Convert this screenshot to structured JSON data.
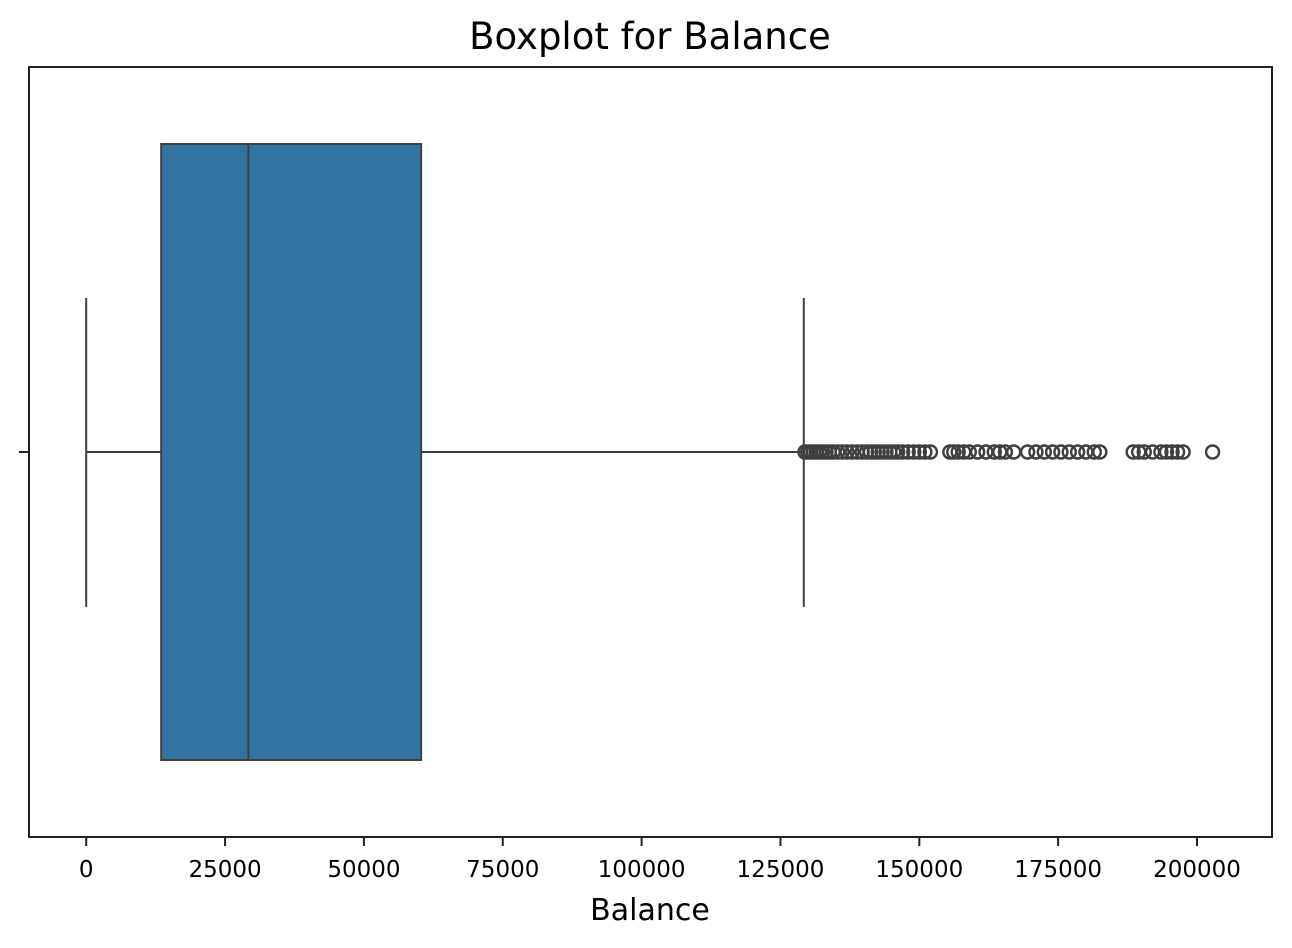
{
  "chart_data": {
    "type": "boxplot",
    "title": "Boxplot for Balance",
    "xlabel": "Balance",
    "ylabel": "",
    "xlim": [
      -10300,
      213500
    ],
    "xticks": [
      0,
      25000,
      50000,
      75000,
      100000,
      125000,
      150000,
      175000,
      200000
    ],
    "grid": false,
    "legend": "none",
    "box_color": "#3274a1",
    "line_color": "#3f3f3f",
    "stats": {
      "whisker_low": 0,
      "q1": 13500,
      "median": 29200,
      "q3": 60300,
      "whisker_high": 129200
    },
    "outliers": [
      129400,
      129900,
      130400,
      130900,
      131400,
      132000,
      132600,
      133200,
      133800,
      134500,
      135300,
      136100,
      137000,
      137900,
      138800,
      139700,
      140500,
      141200,
      141900,
      142600,
      143300,
      144000,
      144700,
      145400,
      146100,
      147000,
      148000,
      149000,
      150000,
      151000,
      152000,
      155500,
      156200,
      157000,
      158000,
      159000,
      160500,
      162000,
      163500,
      164500,
      165500,
      167000,
      169500,
      171000,
      172500,
      174000,
      175500,
      177000,
      178500,
      180000,
      181500,
      182500,
      188500,
      189500,
      190500,
      192000,
      193500,
      194500,
      195500,
      196500,
      197500,
      202800
    ]
  }
}
